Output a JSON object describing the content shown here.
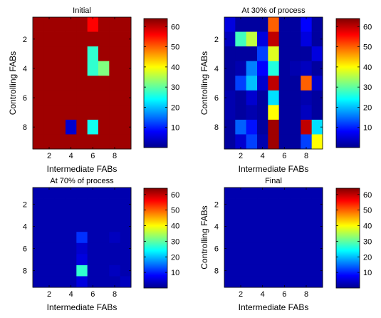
{
  "chart_data": [
    {
      "type": "heatmap",
      "title": "Initial",
      "xlabel": "Intermediate FABs",
      "ylabel": "Controlling FABs",
      "rows": 9,
      "cols": 9,
      "x_ticks": [
        "2",
        "4",
        "6",
        "8"
      ],
      "y_ticks": [
        "2",
        "4",
        "6",
        "8"
      ],
      "clim": [
        0,
        64
      ],
      "colorbar_ticks": [
        10,
        20,
        30,
        40,
        50,
        60
      ],
      "colormap": "jet",
      "background_value": 62,
      "cells": [
        [
          1,
          6,
          56
        ],
        [
          2,
          6,
          62
        ],
        [
          2,
          7,
          62
        ],
        [
          3,
          6,
          27
        ],
        [
          3,
          7,
          62
        ],
        [
          4,
          6,
          27
        ],
        [
          4,
          7,
          32
        ],
        [
          8,
          4,
          5
        ],
        [
          8,
          6,
          25
        ]
      ]
    },
    {
      "type": "heatmap",
      "title": "At 30% of process",
      "xlabel": "Intermediate FABs",
      "ylabel": "Controlling FABs",
      "rows": 9,
      "cols": 9,
      "x_ticks": [
        "2",
        "4",
        "6",
        "8"
      ],
      "y_ticks": [
        "2",
        "4",
        "6",
        "8"
      ],
      "clim": [
        0,
        64
      ],
      "colorbar_ticks": [
        10,
        20,
        30,
        40,
        50,
        60
      ],
      "colormap": "jet",
      "background_value": 2,
      "cells": [
        [
          1,
          1,
          6
        ],
        [
          1,
          5,
          50
        ],
        [
          1,
          8,
          8
        ],
        [
          2,
          1,
          4
        ],
        [
          2,
          2,
          28
        ],
        [
          2,
          3,
          36
        ],
        [
          2,
          4,
          6
        ],
        [
          2,
          5,
          60
        ],
        [
          2,
          8,
          6
        ],
        [
          3,
          4,
          12
        ],
        [
          3,
          5,
          38
        ],
        [
          3,
          9,
          6
        ],
        [
          4,
          2,
          3
        ],
        [
          4,
          3,
          16
        ],
        [
          4,
          4,
          8
        ],
        [
          4,
          5,
          26
        ],
        [
          4,
          7,
          3
        ],
        [
          4,
          8,
          4
        ],
        [
          5,
          2,
          12
        ],
        [
          5,
          3,
          20
        ],
        [
          5,
          4,
          5
        ],
        [
          5,
          5,
          60
        ],
        [
          5,
          8,
          50
        ],
        [
          5,
          9,
          5
        ],
        [
          6,
          1,
          3
        ],
        [
          6,
          3,
          5
        ],
        [
          6,
          5,
          22
        ],
        [
          6,
          8,
          3
        ],
        [
          7,
          1,
          3
        ],
        [
          7,
          3,
          3
        ],
        [
          7,
          5,
          40
        ],
        [
          7,
          8,
          4
        ],
        [
          8,
          2,
          14
        ],
        [
          8,
          3,
          9
        ],
        [
          8,
          4,
          2
        ],
        [
          8,
          5,
          62
        ],
        [
          8,
          8,
          60
        ],
        [
          8,
          9,
          22
        ],
        [
          9,
          2,
          5
        ],
        [
          9,
          3,
          12
        ],
        [
          9,
          4,
          3
        ],
        [
          9,
          5,
          62
        ],
        [
          9,
          8,
          12
        ],
        [
          9,
          9,
          40
        ]
      ]
    },
    {
      "type": "heatmap",
      "title": "At 70% of process",
      "xlabel": "Intermediate FABs",
      "ylabel": "",
      "rows": 9,
      "cols": 9,
      "x_ticks": [
        "2",
        "4",
        "6",
        "8"
      ],
      "y_ticks": [
        "2",
        "4",
        "6",
        "8"
      ],
      "clim": [
        0,
        64
      ],
      "colorbar_ticks": [
        10,
        20,
        30,
        40,
        50,
        60
      ],
      "colormap": "jet",
      "background_value": 3,
      "cells": [
        [
          5,
          5,
          11
        ],
        [
          5,
          8,
          4
        ],
        [
          6,
          5,
          5
        ],
        [
          7,
          5,
          6
        ],
        [
          8,
          5,
          27
        ],
        [
          8,
          8,
          4
        ],
        [
          9,
          5,
          6
        ],
        [
          9,
          9,
          4
        ]
      ]
    },
    {
      "type": "heatmap",
      "title": "Final",
      "xlabel": "Intermediate FABs",
      "ylabel": "Controlling FABs",
      "rows": 9,
      "cols": 9,
      "x_ticks": [
        "2",
        "4",
        "6",
        "8"
      ],
      "y_ticks": [
        "2",
        "4",
        "6",
        "8"
      ],
      "clim": [
        0,
        64
      ],
      "colorbar_ticks": [
        10,
        20,
        30,
        40,
        50,
        60
      ],
      "colormap": "jet",
      "background_value": 3,
      "cells": []
    }
  ]
}
